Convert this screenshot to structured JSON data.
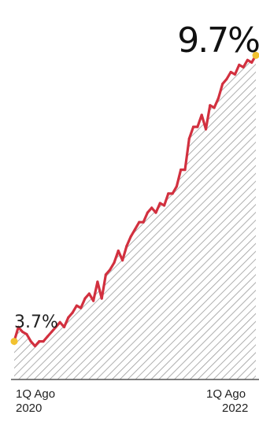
{
  "chart_data": {
    "type": "area",
    "title": "",
    "xlabel": "",
    "ylabel": "",
    "x_start": "1Q Ago 2020",
    "x_end": "1Q Ago 2022",
    "x_tick_labels": [
      {
        "line1": "1Q Ago",
        "line2": "2020"
      },
      {
        "line1": "1Q Ago",
        "line2": "2022"
      }
    ],
    "start_label": "3.7%",
    "end_label": "9.7%",
    "ylim": [
      2.9,
      10.2
    ],
    "grid": false,
    "series": [
      {
        "values": [
          3.7,
          4.0,
          3.9,
          3.85,
          3.7,
          3.6,
          3.7,
          3.7,
          3.8,
          3.9,
          4.0,
          4.1,
          4.0,
          4.2,
          4.3,
          4.45,
          4.4,
          4.6,
          4.7,
          4.55,
          4.95,
          4.6,
          5.1,
          5.2,
          5.35,
          5.6,
          5.4,
          5.7,
          5.9,
          6.05,
          6.2,
          6.2,
          6.4,
          6.5,
          6.4,
          6.6,
          6.55,
          6.8,
          6.8,
          6.95,
          7.3,
          7.3,
          7.95,
          8.2,
          8.2,
          8.45,
          8.15,
          8.65,
          8.6,
          8.8,
          9.1,
          9.2,
          9.35,
          9.3,
          9.5,
          9.45,
          9.6,
          9.55,
          9.7
        ],
        "color": "#d2303f"
      }
    ],
    "colors": {
      "line": "#d2303f",
      "marker": "#f2c230",
      "hatch": "#9a9a9a",
      "axis": "#555555",
      "text": "#222222"
    }
  }
}
